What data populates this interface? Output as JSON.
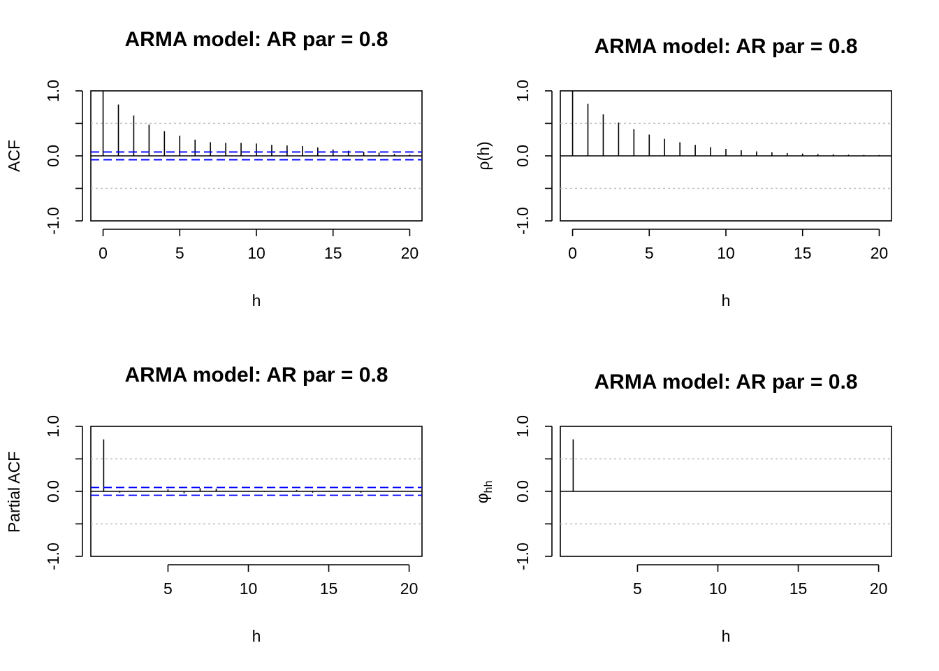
{
  "charts": [
    {
      "type": "bar",
      "title": "ARMA model: AR par = 0.8",
      "xlabel": "h",
      "ylabel": "ACF",
      "ylabel_style": "plain",
      "xlim": [
        -0.8,
        20.8
      ],
      "ylim": [
        -1.0,
        1.0
      ],
      "x_ticks": [
        "0",
        "5",
        "10",
        "15",
        "20"
      ],
      "y_ticks": [
        "-1.0",
        "0.0",
        "1.0"
      ],
      "reference_lines": [
        -0.5,
        0.5
      ],
      "confidence_band": 0.06,
      "band_color": "#0000ff",
      "lags": [
        0,
        1,
        2,
        3,
        4,
        5,
        6,
        7,
        8,
        9,
        10,
        11,
        12,
        13,
        14,
        15,
        16,
        17,
        18,
        19,
        20
      ],
      "values": [
        1.0,
        0.79,
        0.62,
        0.48,
        0.38,
        0.31,
        0.25,
        0.21,
        0.2,
        0.2,
        0.19,
        0.17,
        0.16,
        0.15,
        0.13,
        0.1,
        0.08,
        0.06,
        0.05,
        0.03,
        0.02
      ]
    },
    {
      "type": "bar",
      "title": "ARMA model: AR par = 0.8",
      "xlabel": "h",
      "ylabel": "ρ(h)",
      "ylabel_style": "plain",
      "xlim": [
        -0.8,
        20.8
      ],
      "ylim": [
        -1.0,
        1.0
      ],
      "x_ticks": [
        "0",
        "5",
        "10",
        "15",
        "20"
      ],
      "y_ticks": [
        "-1.0",
        "0.0",
        "1.0"
      ],
      "reference_lines": [
        -0.5,
        0.5
      ],
      "lags": [
        0,
        1,
        2,
        3,
        4,
        5,
        6,
        7,
        8,
        9,
        10,
        11,
        12,
        13,
        14,
        15,
        16,
        17,
        18,
        19,
        20
      ],
      "values": [
        1.0,
        0.8,
        0.64,
        0.512,
        0.41,
        0.328,
        0.262,
        0.21,
        0.168,
        0.134,
        0.107,
        0.086,
        0.069,
        0.055,
        0.044,
        0.035,
        0.028,
        0.023,
        0.018,
        0.014,
        0.012
      ]
    },
    {
      "type": "bar",
      "title": "ARMA model: AR par = 0.8",
      "xlabel": "h",
      "ylabel": "Partial ACF",
      "ylabel_style": "plain",
      "xlim": [
        0.2,
        20.8
      ],
      "ylim": [
        -1.0,
        1.0
      ],
      "x_ticks": [
        "5",
        "10",
        "15",
        "20"
      ],
      "y_ticks": [
        "-1.0",
        "0.0",
        "1.0"
      ],
      "reference_lines": [
        -0.5,
        0.5
      ],
      "confidence_band": 0.06,
      "band_color": "#0000ff",
      "lags": [
        1,
        2,
        3,
        4,
        5,
        6,
        7,
        8,
        9,
        10,
        11,
        12,
        13,
        14,
        15,
        16,
        17,
        18,
        19,
        20
      ],
      "values": [
        0.8,
        -0.02,
        0.01,
        -0.01,
        0.03,
        -0.03,
        0.05,
        0.04,
        0.0,
        0.01,
        -0.01,
        0.01,
        0.02,
        -0.02,
        0.01,
        0.0,
        -0.02,
        0.01,
        0.01,
        0.0
      ]
    },
    {
      "type": "bar",
      "title": "ARMA model: AR par = 0.8",
      "xlabel": "h",
      "ylabel": "φ",
      "ylabel_sub": "hh",
      "ylabel_style": "subscript",
      "xlim": [
        0.2,
        20.8
      ],
      "ylim": [
        -1.0,
        1.0
      ],
      "x_ticks": [
        "5",
        "10",
        "15",
        "20"
      ],
      "y_ticks": [
        "-1.0",
        "0.0",
        "1.0"
      ],
      "reference_lines": [
        -0.5,
        0.5
      ],
      "lags": [
        1,
        2,
        3,
        4,
        5,
        6,
        7,
        8,
        9,
        10,
        11,
        12,
        13,
        14,
        15,
        16,
        17,
        18,
        19,
        20
      ],
      "values": [
        0.8,
        0,
        0,
        0,
        0,
        0,
        0,
        0,
        0,
        0,
        0,
        0,
        0,
        0,
        0,
        0,
        0,
        0,
        0,
        0
      ]
    }
  ]
}
